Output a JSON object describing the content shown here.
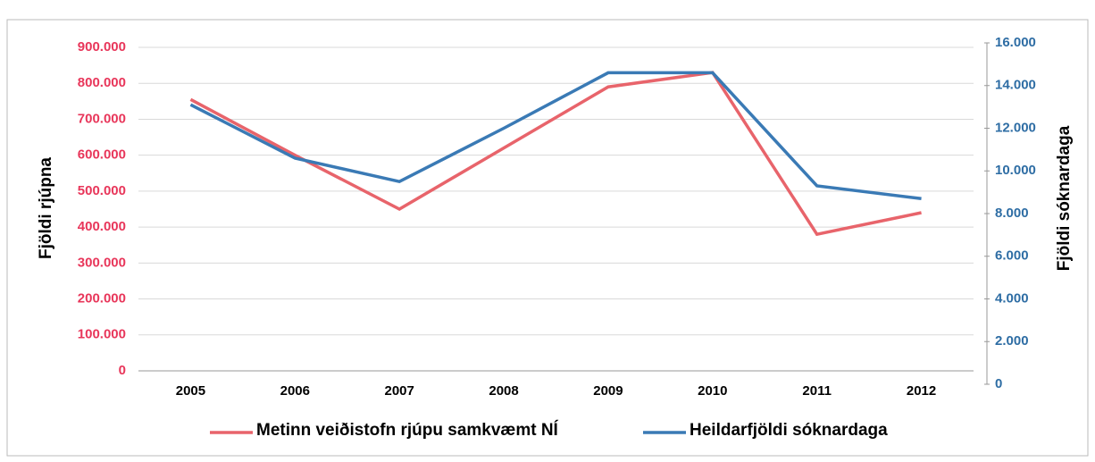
{
  "chart_data": {
    "type": "line",
    "categories": [
      "2005",
      "2006",
      "2007",
      "2008",
      "2009",
      "2010",
      "2011",
      "2012"
    ],
    "ylabel": "Fjöldi rjúpna",
    "y2label": "Fjöldi sóknardaga",
    "ylim": [
      0,
      900000
    ],
    "yticks": [
      0,
      {
        "value": 100000,
        "label": "100.000"
      },
      {
        "value": 200000,
        "label": "200.000"
      },
      {
        "value": 300000,
        "label": "300.000"
      },
      {
        "value": 400000,
        "label": "400.000"
      },
      {
        "value": 500000,
        "label": "500.000"
      },
      {
        "value": 600000,
        "label": "600.000"
      },
      {
        "value": 700000,
        "label": "700.000"
      },
      {
        "value": 800000,
        "label": "800.000"
      },
      {
        "value": 900000,
        "label": "900.000"
      }
    ],
    "y2lim": [
      0,
      16000
    ],
    "y2ticks": [
      0,
      {
        "value": 2000,
        "label": "2.000"
      },
      {
        "value": 4000,
        "label": "4.000"
      },
      {
        "value": 6000,
        "label": "6.000"
      },
      {
        "value": 8000,
        "label": "8.000"
      },
      {
        "value": 10000,
        "label": "10.000"
      },
      {
        "value": 12000,
        "label": "12.000"
      },
      {
        "value": 14000,
        "label": "14.000"
      },
      {
        "value": 16000,
        "label": "16.000"
      }
    ],
    "grid": true,
    "legend": "bottom",
    "series": [
      {
        "name": "Metinn veiðistofn rjúpu samkvæmt NÍ",
        "color": "#e8646b",
        "values": [
          755000,
          600000,
          450000,
          620000,
          790000,
          830000,
          380000,
          440000
        ]
      },
      {
        "name": "Heildarfjöldi sóknardaga",
        "color": "#3a7ab5",
        "axis": "y2",
        "values": [
          13100,
          10600,
          9500,
          12000,
          14600,
          14600,
          9300,
          8700
        ]
      }
    ]
  }
}
